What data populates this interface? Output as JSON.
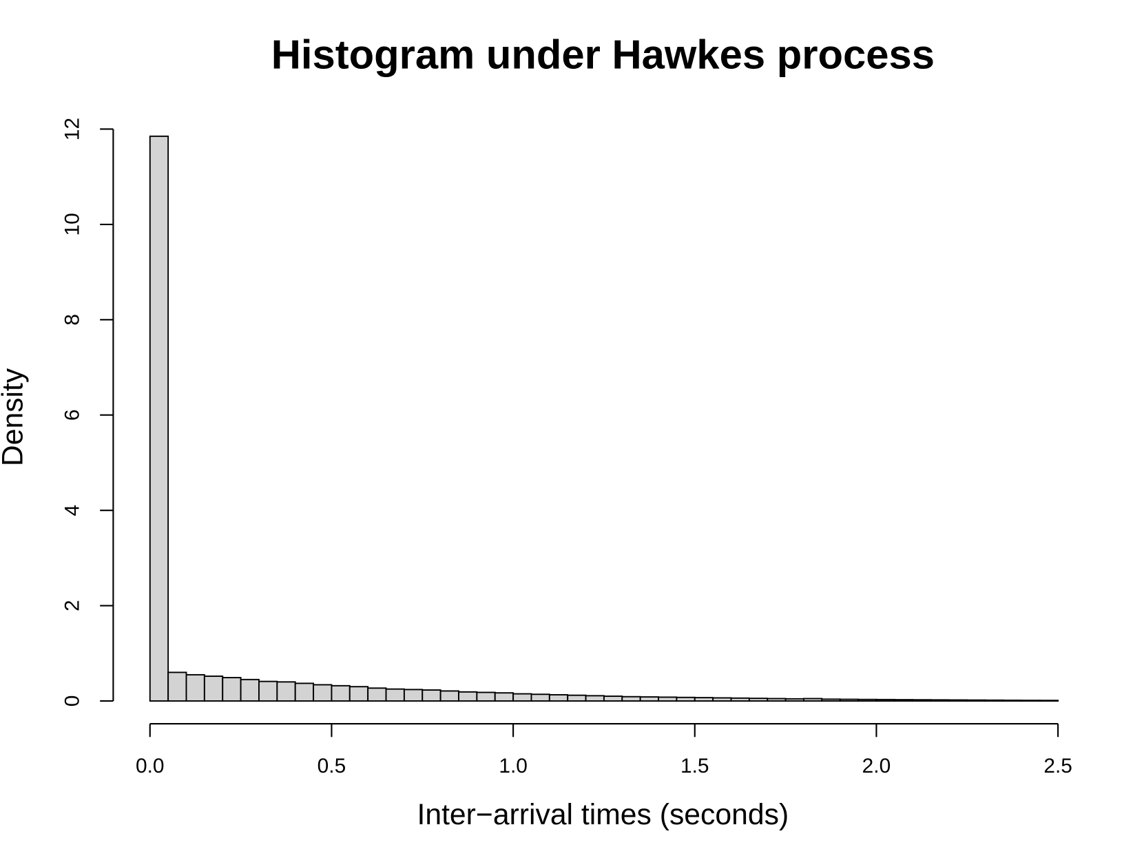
{
  "chart_data": {
    "type": "histogram",
    "title": "Histogram under Hawkes process",
    "x_label": "Inter−arrival times (seconds)",
    "y_label": "Density",
    "bins": [
      0,
      0.05,
      0.1,
      0.15,
      0.2,
      0.25,
      0.3,
      0.35,
      0.4,
      0.45,
      0.5,
      0.55,
      0.6,
      0.65,
      0.7,
      0.75,
      0.8,
      0.85,
      0.9,
      0.95,
      1.0,
      1.05,
      1.1,
      1.15,
      1.2,
      1.25,
      1.3,
      1.35,
      1.4,
      1.45,
      1.5,
      1.55,
      1.6,
      1.65,
      1.7,
      1.75,
      1.8,
      1.85,
      1.9,
      1.95,
      2.0,
      2.05,
      2.1,
      2.15,
      2.2,
      2.25,
      2.3,
      2.35,
      2.4,
      2.45,
      2.5
    ],
    "values": [
      11.85,
      0.6,
      0.55,
      0.52,
      0.49,
      0.45,
      0.41,
      0.4,
      0.37,
      0.34,
      0.32,
      0.3,
      0.27,
      0.25,
      0.24,
      0.23,
      0.21,
      0.19,
      0.18,
      0.17,
      0.15,
      0.14,
      0.13,
      0.12,
      0.11,
      0.1,
      0.09,
      0.085,
      0.08,
      0.075,
      0.07,
      0.065,
      0.06,
      0.055,
      0.05,
      0.045,
      0.05,
      0.038,
      0.035,
      0.032,
      0.03,
      0.027,
      0.025,
      0.023,
      0.021,
      0.019,
      0.017,
      0.015,
      0.013,
      0.012
    ],
    "color": "#d3d3d3",
    "xlim": [
      0,
      2.5
    ],
    "xticks": [
      {
        "value": 0,
        "label": "0.0"
      },
      0.5,
      {
        "value": 1,
        "label": "1.0"
      },
      1.5,
      {
        "value": 2,
        "label": "2.0"
      },
      2.5
    ],
    "ylim": [
      0,
      12
    ],
    "yticks": [
      0,
      2,
      4,
      6,
      8,
      10,
      12
    ]
  }
}
